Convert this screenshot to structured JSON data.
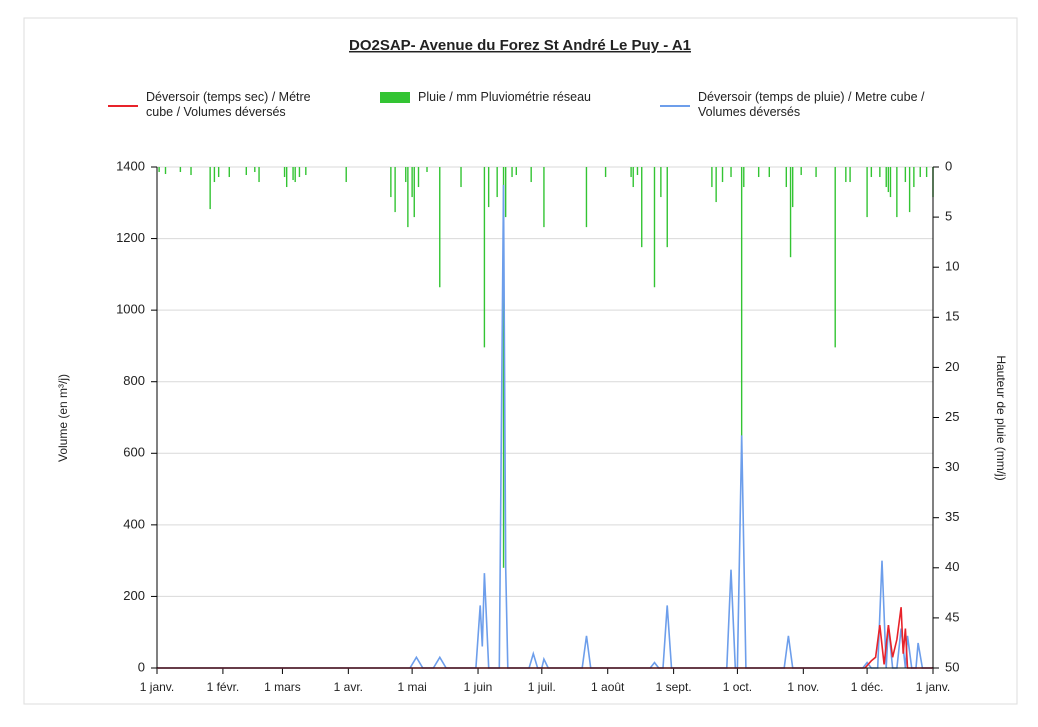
{
  "chart_data": {
    "type": "line",
    "title": "DO2SAP- Avenue du Forez  St André Le Puy - A1",
    "y_label": "Volume (en m³/j)",
    "y2_label": "Hauteur de pluie (mm/j)",
    "xlim": [
      0,
      365
    ],
    "xticks": [
      {
        "value": 0,
        "label": "1 janv."
      },
      {
        "value": 31,
        "label": "1 févr."
      },
      {
        "value": 59,
        "label": "1 mars"
      },
      {
        "value": 90,
        "label": "1 avr."
      },
      {
        "value": 120,
        "label": "1 mai"
      },
      {
        "value": 151,
        "label": "1 juin"
      },
      {
        "value": 181,
        "label": "1 juil."
      },
      {
        "value": 212,
        "label": "1 août"
      },
      {
        "value": 243,
        "label": "1 sept."
      },
      {
        "value": 273,
        "label": "1 oct."
      },
      {
        "value": 304,
        "label": "1 nov."
      },
      {
        "value": 334,
        "label": "1 déc."
      },
      {
        "value": 365,
        "label": "1 janv."
      }
    ],
    "ylim": [
      0,
      1400
    ],
    "yticks": [
      0,
      200,
      400,
      600,
      800,
      1000,
      1200,
      1400
    ],
    "y2lim": [
      50,
      0
    ],
    "y2ticks": [
      0,
      5,
      10,
      15,
      20,
      25,
      30,
      35,
      40,
      45,
      50
    ],
    "y2_inverted": true,
    "grid": true,
    "legend": "top",
    "series": [
      {
        "name": "Déversoir (temps sec) / Métre cube / Volumes déversés",
        "type": "line",
        "color": "#e8232a",
        "x": [
          0,
          333,
          336,
          338,
          340,
          342,
          344,
          346,
          348,
          350,
          351,
          352,
          353,
          365
        ],
        "values": [
          0,
          0,
          20,
          30,
          120,
          10,
          120,
          30,
          80,
          170,
          40,
          110,
          0,
          0
        ]
      },
      {
        "name": "Pluie / mm Pluviométrie réseau",
        "type": "bar",
        "axis": "y2",
        "color": "#33c433",
        "x": [
          1,
          4,
          11,
          16,
          25,
          27,
          29,
          34,
          42,
          46,
          48,
          60,
          61,
          64,
          65,
          67,
          70,
          89,
          110,
          112,
          117,
          118,
          120,
          121,
          123,
          127,
          133,
          143,
          154,
          156,
          160,
          163,
          164,
          167,
          169,
          176,
          182,
          202,
          211,
          223,
          224,
          226,
          228,
          234,
          237,
          240,
          261,
          263,
          266,
          270,
          275,
          276,
          283,
          288,
          296,
          298,
          299,
          303,
          310,
          319,
          324,
          326,
          334,
          336,
          340,
          343,
          344,
          345,
          348,
          352,
          354,
          356,
          359,
          362,
          365
        ],
        "values": [
          0.5,
          0.7,
          0.5,
          0.8,
          4.2,
          1.5,
          1,
          1,
          0.8,
          0.5,
          1.5,
          1,
          2,
          1.3,
          1.5,
          1,
          0.8,
          1.5,
          3,
          4.5,
          1.5,
          6,
          3,
          5,
          2,
          0.5,
          12,
          2,
          18,
          4,
          3,
          40,
          5,
          1,
          0.8,
          1.5,
          6,
          6,
          1,
          1,
          2,
          0.8,
          8,
          12,
          3,
          8,
          2,
          3.5,
          1.5,
          1,
          28,
          2,
          1,
          1,
          2,
          9,
          4,
          0.8,
          1,
          18,
          1.5,
          1.5,
          5,
          1,
          1,
          2,
          2.5,
          3,
          5,
          1.5,
          4.5,
          2,
          1,
          1,
          3
        ]
      },
      {
        "name": "Déversoir (temps de pluie) / Metre cube / Volumes déversés",
        "type": "line",
        "color": "#6d9eeb",
        "x": [
          0,
          119,
          122,
          125,
          130,
          133,
          136,
          150,
          152,
          153,
          154,
          156,
          161,
          163,
          164,
          165,
          175,
          177,
          179,
          181,
          182,
          184,
          200,
          202,
          204,
          232,
          234,
          236,
          238,
          240,
          242,
          268,
          270,
          272,
          273,
          275,
          277,
          295,
          297,
          299,
          332,
          334,
          336,
          339,
          341,
          343,
          344,
          346,
          348,
          350,
          352,
          353,
          355,
          357,
          358,
          360,
          365
        ],
        "values": [
          0,
          0,
          30,
          0,
          0,
          30,
          0,
          0,
          175,
          60,
          265,
          0,
          0,
          1350,
          280,
          0,
          0,
          40,
          0,
          0,
          25,
          0,
          0,
          90,
          0,
          0,
          15,
          0,
          0,
          175,
          0,
          0,
          275,
          0,
          0,
          650,
          0,
          0,
          90,
          0,
          0,
          15,
          0,
          0,
          300,
          0,
          120,
          0,
          0,
          110,
          0,
          90,
          0,
          0,
          70,
          0,
          0
        ]
      }
    ]
  }
}
